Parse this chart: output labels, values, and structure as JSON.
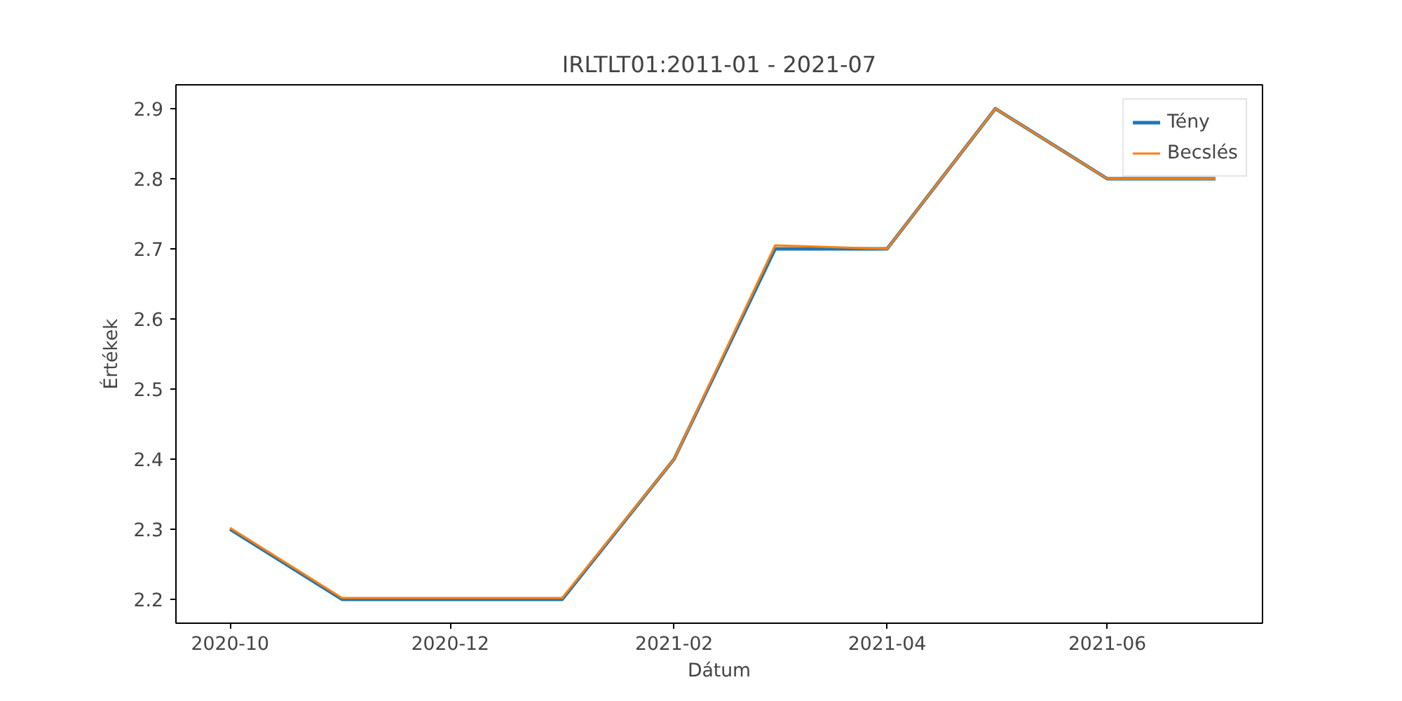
{
  "chart_data": {
    "type": "line",
    "title": "IRLTLT01:2011-01 - 2021-07",
    "xlabel": "Dátum",
    "ylabel": "Értékek",
    "x": [
      "2020-10",
      "2020-11",
      "2020-12",
      "2021-01",
      "2021-02",
      "2021-03",
      "2021-04",
      "2021-05",
      "2021-06",
      "2021-07"
    ],
    "series": [
      {
        "name": "Tény",
        "color": "#1f77b4",
        "values": [
          2.3,
          2.2,
          2.2,
          2.2,
          2.4,
          2.7,
          2.7,
          2.9,
          2.8,
          2.8
        ]
      },
      {
        "name": "Becslés",
        "color": "#ff7f0e",
        "values": [
          2.302,
          2.202,
          2.202,
          2.202,
          2.4,
          2.705,
          2.7,
          2.9,
          2.8,
          2.8
        ]
      }
    ],
    "xlim": [
      "2020-09-16",
      "2021-07-14"
    ],
    "xticks": [
      "2020-10",
      "2020-12",
      "2021-02",
      "2021-04",
      "2021-06"
    ],
    "ylim": [
      2.166,
      2.934
    ],
    "yticks": [
      2.2,
      2.3,
      2.4,
      2.5,
      2.6,
      2.7,
      2.8,
      2.9
    ],
    "grid": false,
    "legend": "top right",
    "line_style": "solid",
    "marker": "none"
  }
}
